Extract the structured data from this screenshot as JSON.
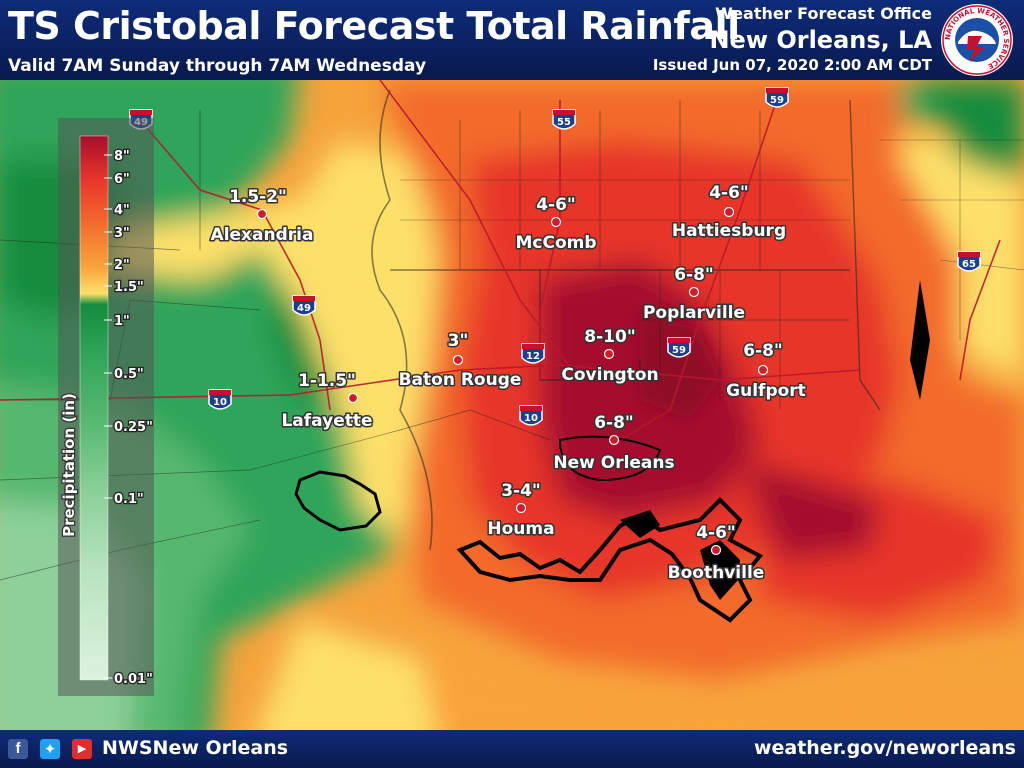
{
  "header": {
    "title": "TS Cristobal Forecast Total Rainfall",
    "subtitle": "Valid 7AM Sunday through 7AM Wednesday",
    "office": "Weather Forecast Office",
    "city": "New Orleans, LA",
    "issued": "Issued Jun 07, 2020 2:00 AM CDT",
    "logo_text": "NATIONAL WEATHER SERVICE"
  },
  "legend": {
    "title": "Precipitation (in)",
    "stops": [
      {
        "label": "8\"",
        "color": "#a50f2d"
      },
      {
        "label": "6\"",
        "color": "#e7352a"
      },
      {
        "label": "4\"",
        "color": "#f36b2c"
      },
      {
        "label": "3\"",
        "color": "#f9a33b"
      },
      {
        "label": "2\"",
        "color": "#fde06a"
      },
      {
        "label": "1.5\"",
        "color": "#138c3c"
      },
      {
        "label": "1\"",
        "color": "#2fa55a"
      },
      {
        "label": "0.5\"",
        "color": "#56b86e"
      },
      {
        "label": "0.25\"",
        "color": "#8dd09a"
      },
      {
        "label": "0.1\"",
        "color": "#b8e3bf"
      },
      {
        "label": "0.01\"",
        "color": "#dcf2de"
      }
    ]
  },
  "locations": [
    {
      "name": "Alexandria",
      "amount": "1.5-2\""
    },
    {
      "name": "McComb",
      "amount": "4-6\""
    },
    {
      "name": "Hattiesburg",
      "amount": "4-6\""
    },
    {
      "name": "Poplarville",
      "amount": "6-8\""
    },
    {
      "name": "Baton Rouge",
      "amount": "3\""
    },
    {
      "name": "Covington",
      "amount": "8-10\""
    },
    {
      "name": "Gulfport",
      "amount": "6-8\""
    },
    {
      "name": "Lafayette",
      "amount": "1-1.5\""
    },
    {
      "name": "New Orleans",
      "amount": "6-8\""
    },
    {
      "name": "Houma",
      "amount": "3-4\""
    },
    {
      "name": "Boothville",
      "amount": "4-6\""
    }
  ],
  "highways": [
    "49",
    "55",
    "59",
    "65",
    "49",
    "12",
    "59",
    "10",
    "10"
  ],
  "footer": {
    "social_handle": "NWSNew Orleans",
    "website": "weather.gov/neworleans",
    "icons": [
      "facebook-icon",
      "twitter-icon",
      "youtube-icon"
    ]
  }
}
